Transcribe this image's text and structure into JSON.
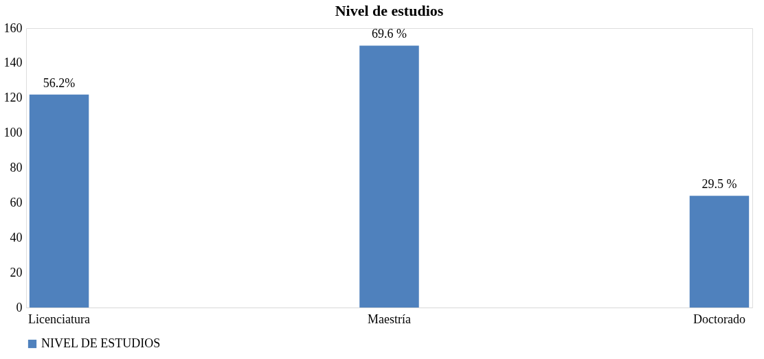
{
  "chart_data": {
    "type": "bar",
    "title": "Nivel de estudios",
    "categories": [
      "Licenciatura",
      "Maestría",
      "Doctorado"
    ],
    "series": [
      {
        "name": "NIVEL DE ESTUDIOS",
        "color": "#4f81bd",
        "values": [
          122,
          150,
          64
        ]
      }
    ],
    "annotations": [
      {
        "text": "56.2%",
        "x": "Licenciatura",
        "y": 122
      },
      {
        "text": "69.6 %",
        "x": "Maestría",
        "y": 150
      },
      {
        "text": "29.5 %",
        "x": "Doctorado",
        "y": 64
      }
    ],
    "ylim": [
      0,
      160
    ],
    "yticks": [
      0,
      20,
      40,
      60,
      80,
      100,
      120,
      140,
      160
    ],
    "grid": false,
    "legend": "bottom"
  }
}
